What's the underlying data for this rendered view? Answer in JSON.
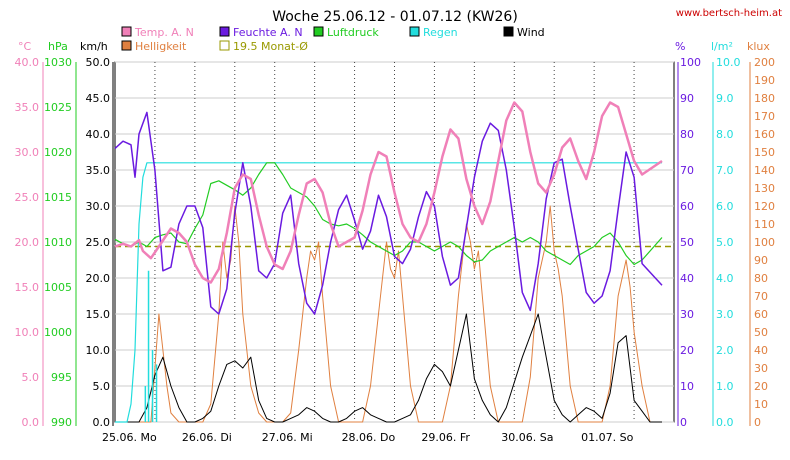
{
  "title": "Woche 25.06.12 - 01.07.12 (KW26)",
  "site": "www.bertsch-heim.at",
  "colors": {
    "temp": "#f080b8",
    "humidity": "#6a1ae0",
    "pressure": "#22cc22",
    "rain": "#22dddd",
    "wind": "#000000",
    "brightness": "#e08040",
    "monthly_avg": "#999900",
    "grid": "#cccccc"
  },
  "legend": [
    {
      "label": "Temp. A. N",
      "color": "#f080b8",
      "filled": true
    },
    {
      "label": "Feuchte A. N",
      "color": "#6a1ae0",
      "filled": true
    },
    {
      "label": "Luftdruck",
      "color": "#22cc22",
      "filled": true
    },
    {
      "label": "Regen",
      "color": "#22dddd",
      "filled": true
    },
    {
      "label": "Wind",
      "color": "#000000",
      "filled": true
    },
    {
      "label": "Helligkeit",
      "color": "#e08040",
      "filled": true
    },
    {
      "label": "19.5 Monat-Ø",
      "color": "#999900",
      "filled": false
    }
  ],
  "units": {
    "temp": "°C",
    "pressure": "hPa",
    "wind": "km/h",
    "humidity": "%",
    "rain": "l/m²",
    "brightness": "klux"
  },
  "chart_data": {
    "type": "line",
    "title": "Woche 25.06.12 - 01.07.12 (KW26)",
    "x_categories": [
      "25.06.  Mo",
      "26.06.  Di",
      "27.06.  Mi",
      "28.06.  Do",
      "29.06.  Fr",
      "30.06.  Sa",
      "01.07.  So"
    ],
    "axes": {
      "temp": {
        "range": [
          0,
          40
        ],
        "ticks": [
          "0.0",
          "5.0",
          "10.0",
          "15.0",
          "20.0",
          "25.0",
          "30.0",
          "35.0",
          "40.0"
        ]
      },
      "pressure": {
        "range": [
          990,
          1030
        ],
        "ticks": [
          "990",
          "995",
          "1000",
          "1005",
          "1010",
          "1015",
          "1020",
          "1025",
          "1030"
        ]
      },
      "wind": {
        "range": [
          0,
          50
        ],
        "ticks": [
          "0.0",
          "5.0",
          "10.0",
          "15.0",
          "20.0",
          "25.0",
          "30.0",
          "35.0",
          "40.0",
          "45.0",
          "50.0"
        ]
      },
      "humidity": {
        "range": [
          0,
          100
        ],
        "ticks": [
          "0",
          "10",
          "20",
          "30",
          "40",
          "50",
          "60",
          "70",
          "80",
          "90",
          "100"
        ]
      },
      "rain": {
        "range": [
          0,
          10
        ],
        "ticks": [
          "0.0",
          "1.0",
          "2.0",
          "3.0",
          "4.0",
          "5.0",
          "6.0",
          "7.0",
          "8.0",
          "9.0",
          "10.0"
        ]
      },
      "brightness": {
        "range": [
          0,
          200
        ],
        "ticks": [
          "0",
          "10",
          "20",
          "30",
          "40",
          "50",
          "60",
          "70",
          "80",
          "90",
          "100",
          "110",
          "120",
          "130",
          "140",
          "150",
          "160",
          "170",
          "180",
          "190",
          "200"
        ]
      }
    },
    "grid": true,
    "monthly_average_temp": 19.5,
    "series": [
      {
        "name": "Temp. A. N",
        "axis": "temp",
        "x": [
          0,
          0.1,
          0.2,
          0.3,
          0.35,
          0.45,
          0.55,
          0.7,
          0.8,
          0.9,
          1.0,
          1.1,
          1.2,
          1.3,
          1.4,
          1.5,
          1.6,
          1.7,
          1.8,
          1.9,
          2.0,
          2.1,
          2.2,
          2.3,
          2.4,
          2.5,
          2.6,
          2.7,
          2.8,
          2.9,
          3.0,
          3.1,
          3.2,
          3.3,
          3.4,
          3.5,
          3.6,
          3.7,
          3.8,
          3.9,
          4.0,
          4.1,
          4.2,
          4.3,
          4.4,
          4.5,
          4.6,
          4.7,
          4.8,
          4.9,
          5.0,
          5.1,
          5.2,
          5.3,
          5.4,
          5.5,
          5.6,
          5.7,
          5.8,
          5.9,
          6.0,
          6.1,
          6.2,
          6.3,
          6.4,
          6.5,
          6.6,
          6.85
        ],
        "y": [
          19.5,
          19.8,
          19.5,
          20.2,
          19.0,
          18.2,
          19.5,
          21.5,
          21.0,
          20.0,
          17.5,
          16.0,
          15.5,
          17.0,
          21.0,
          26.0,
          27.5,
          27.0,
          23.0,
          19.5,
          17.5,
          17.0,
          19.0,
          23.0,
          26.5,
          27.0,
          25.5,
          22.0,
          19.5,
          20.0,
          20.5,
          23.5,
          27.5,
          30.0,
          29.5,
          25.5,
          22.0,
          20.5,
          20.0,
          22.0,
          25.5,
          29.5,
          32.5,
          31.5,
          27.0,
          24.0,
          22.0,
          24.5,
          29.0,
          33.5,
          35.5,
          34.5,
          30.0,
          26.5,
          25.5,
          27.5,
          30.5,
          31.5,
          29.0,
          27.0,
          30.0,
          34.0,
          35.5,
          35.0,
          32.0,
          29.0,
          27.5,
          29.0
        ]
      },
      {
        "name": "Feuchte A. N",
        "axis": "humidity",
        "x": [
          0,
          0.1,
          0.2,
          0.25,
          0.3,
          0.4,
          0.5,
          0.6,
          0.7,
          0.8,
          0.9,
          1.0,
          1.1,
          1.2,
          1.3,
          1.4,
          1.5,
          1.6,
          1.7,
          1.8,
          1.9,
          2.0,
          2.1,
          2.2,
          2.3,
          2.4,
          2.5,
          2.6,
          2.7,
          2.8,
          2.9,
          3.0,
          3.1,
          3.2,
          3.3,
          3.4,
          3.5,
          3.6,
          3.7,
          3.8,
          3.9,
          4.0,
          4.1,
          4.2,
          4.3,
          4.4,
          4.5,
          4.6,
          4.7,
          4.8,
          4.9,
          5.0,
          5.1,
          5.2,
          5.3,
          5.4,
          5.5,
          5.6,
          5.7,
          5.8,
          5.9,
          6.0,
          6.1,
          6.2,
          6.3,
          6.4,
          6.5,
          6.6,
          6.85
        ],
        "y": [
          76,
          78,
          77,
          68,
          80,
          86,
          70,
          42,
          43,
          55,
          60,
          60,
          54,
          32,
          30,
          37,
          58,
          72,
          60,
          42,
          40,
          44,
          58,
          63,
          44,
          33,
          30,
          38,
          50,
          59,
          63,
          56,
          48,
          53,
          63,
          57,
          46,
          44,
          48,
          57,
          64,
          60,
          46,
          38,
          40,
          54,
          68,
          78,
          83,
          81,
          70,
          54,
          36,
          31,
          44,
          62,
          72,
          73,
          60,
          48,
          36,
          33,
          35,
          42,
          59,
          75,
          68,
          44,
          38
        ]
      },
      {
        "name": "Luftdruck",
        "axis": "pressure",
        "x": [
          0,
          0.1,
          0.2,
          0.3,
          0.4,
          0.5,
          0.6,
          0.7,
          0.8,
          0.9,
          1.0,
          1.1,
          1.2,
          1.3,
          1.4,
          1.5,
          1.6,
          1.7,
          1.8,
          1.9,
          2.0,
          2.1,
          2.2,
          2.3,
          2.4,
          2.5,
          2.6,
          2.7,
          2.8,
          2.9,
          3.0,
          3.1,
          3.2,
          3.3,
          3.4,
          3.5,
          3.6,
          3.7,
          3.8,
          3.9,
          4.0,
          4.1,
          4.2,
          4.3,
          4.4,
          4.5,
          4.6,
          4.7,
          4.8,
          4.9,
          5.0,
          5.1,
          5.2,
          5.3,
          5.4,
          5.5,
          5.6,
          5.7,
          5.8,
          5.9,
          6.0,
          6.1,
          6.2,
          6.3,
          6.4,
          6.5,
          6.6,
          6.85
        ],
        "y": [
          1010.3,
          1009.8,
          1009.5,
          1010.0,
          1009.5,
          1010.5,
          1010.8,
          1011.0,
          1010.0,
          1009.8,
          1011.5,
          1013.0,
          1016.5,
          1016.8,
          1016.3,
          1015.8,
          1015.2,
          1016.0,
          1017.5,
          1018.8,
          1018.8,
          1017.5,
          1016.0,
          1015.5,
          1015.0,
          1014.0,
          1012.5,
          1012.0,
          1011.8,
          1012.0,
          1011.5,
          1010.8,
          1010.0,
          1009.5,
          1009.0,
          1008.5,
          1009.0,
          1010.0,
          1010.0,
          1009.5,
          1009.0,
          1009.5,
          1010.0,
          1009.5,
          1008.5,
          1007.8,
          1008.0,
          1009.0,
          1009.5,
          1010.0,
          1010.5,
          1010.0,
          1010.5,
          1010.0,
          1009.0,
          1008.5,
          1008.0,
          1007.5,
          1008.5,
          1009.0,
          1009.5,
          1010.5,
          1011.0,
          1010.0,
          1008.5,
          1007.5,
          1008.0,
          1010.5
        ]
      },
      {
        "name": "Regen",
        "axis": "rain",
        "x": [
          0,
          0.15,
          0.2,
          0.25,
          0.3,
          0.35,
          0.4,
          0.45,
          0.5,
          6.85
        ],
        "y": [
          0,
          0,
          0.5,
          2.0,
          5.5,
          6.8,
          7.2,
          7.2,
          7.2,
          7.2
        ]
      },
      {
        "name": "Wind",
        "axis": "wind",
        "x": [
          0,
          0.3,
          0.4,
          0.5,
          0.6,
          0.7,
          0.8,
          0.9,
          1.0,
          1.1,
          1.2,
          1.3,
          1.4,
          1.5,
          1.6,
          1.7,
          1.8,
          1.9,
          2.0,
          2.1,
          2.2,
          2.3,
          2.4,
          2.5,
          2.6,
          2.7,
          2.8,
          2.9,
          3.0,
          3.1,
          3.2,
          3.3,
          3.4,
          3.5,
          3.6,
          3.7,
          3.8,
          3.9,
          4.0,
          4.1,
          4.2,
          4.3,
          4.4,
          4.5,
          4.6,
          4.7,
          4.8,
          4.9,
          5.0,
          5.1,
          5.2,
          5.3,
          5.4,
          5.5,
          5.6,
          5.7,
          5.8,
          5.9,
          6.0,
          6.1,
          6.2,
          6.3,
          6.4,
          6.5,
          6.6,
          6.7,
          6.85
        ],
        "y": [
          0,
          0,
          2.0,
          6.5,
          9.0,
          5.0,
          2.0,
          0,
          0,
          0.5,
          1.5,
          5.0,
          8.0,
          8.5,
          7.5,
          9.0,
          3.0,
          0.5,
          0,
          0,
          0.5,
          1.0,
          2.0,
          1.5,
          0.5,
          0,
          0,
          0.5,
          1.5,
          2.0,
          1.0,
          0.5,
          0,
          0,
          0.5,
          1.0,
          3.0,
          6.0,
          8.0,
          7.0,
          5.0,
          10.0,
          15.0,
          6.0,
          3.0,
          1.0,
          0,
          2.0,
          5.5,
          9.0,
          12.0,
          15.0,
          9.0,
          3.0,
          1.0,
          0,
          1.0,
          2.0,
          1.5,
          0.5,
          4.0,
          11.0,
          12.0,
          3.0,
          1.5,
          0,
          0
        ]
      },
      {
        "name": "Helligkeit",
        "axis": "brightness",
        "x": [
          0,
          0.45,
          0.5,
          0.55,
          0.6,
          0.65,
          0.7,
          0.8,
          0.9,
          1.0,
          1.1,
          1.2,
          1.3,
          1.35,
          1.4,
          1.45,
          1.5,
          1.55,
          1.6,
          1.65,
          1.7,
          1.8,
          1.9,
          2.0,
          2.1,
          2.2,
          2.3,
          2.4,
          2.45,
          2.5,
          2.55,
          2.6,
          2.7,
          2.8,
          2.9,
          3.0,
          3.1,
          3.2,
          3.3,
          3.4,
          3.45,
          3.5,
          3.55,
          3.6,
          3.7,
          3.8,
          3.9,
          4.0,
          4.1,
          4.2,
          4.3,
          4.4,
          4.45,
          4.5,
          4.55,
          4.6,
          4.7,
          4.8,
          4.9,
          5.0,
          5.1,
          5.2,
          5.3,
          5.4,
          5.45,
          5.5,
          5.55,
          5.6,
          5.7,
          5.8,
          5.9,
          6.0,
          6.1,
          6.2,
          6.3,
          6.35,
          6.4,
          6.45,
          6.5,
          6.6,
          6.7,
          6.85
        ],
        "y": [
          0,
          0,
          30,
          60,
          40,
          20,
          5,
          0,
          0,
          0,
          0,
          10,
          60,
          100,
          80,
          90,
          120,
          100,
          60,
          40,
          20,
          5,
          0,
          0,
          0,
          5,
          40,
          80,
          95,
          90,
          100,
          70,
          20,
          0,
          0,
          0,
          0,
          20,
          60,
          100,
          85,
          80,
          95,
          70,
          20,
          0,
          0,
          0,
          0,
          20,
          70,
          110,
          100,
          85,
          95,
          70,
          20,
          0,
          0,
          0,
          0,
          25,
          80,
          100,
          120,
          95,
          85,
          70,
          20,
          0,
          0,
          0,
          0,
          20,
          70,
          80,
          90,
          75,
          50,
          20,
          0,
          0
        ]
      }
    ]
  }
}
